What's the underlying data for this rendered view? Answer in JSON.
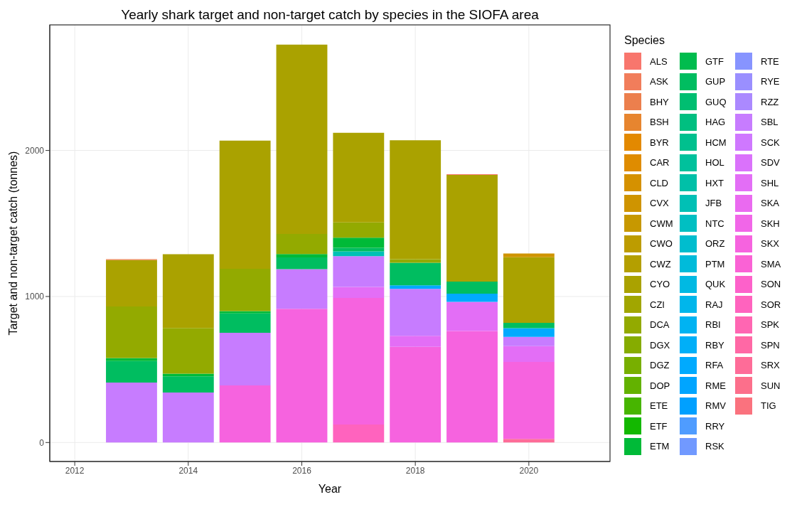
{
  "chart_data": {
    "type": "bar",
    "title": "Yearly shark target and non-target catch by species in the SIOFA area",
    "xlabel": "Year",
    "ylabel": "Target and non-target catch (tonnes)",
    "legend_title": "Species",
    "legend": "right",
    "grid": true,
    "stacked": true,
    "x": [
      2013,
      2014,
      2015,
      2016,
      2017,
      2018,
      2019,
      2020
    ],
    "xlim": [
      2011.56,
      2021.43
    ],
    "xticks": [
      2012,
      2014,
      2016,
      2018,
      2020
    ],
    "ylim": [
      -130,
      2860
    ],
    "yticks": [
      0,
      1000,
      2000
    ],
    "series": [
      {
        "name": "TIG",
        "color": "#fa727e",
        "values": [
          null,
          null,
          null,
          null,
          null,
          null,
          null,
          null
        ]
      },
      {
        "name": "SUN",
        "color": "#fc6f8b",
        "values": [
          null,
          null,
          null,
          null,
          null,
          null,
          null,
          null
        ]
      },
      {
        "name": "SRX",
        "color": "#fe6c98",
        "values": [
          null,
          null,
          null,
          null,
          null,
          null,
          null,
          25
        ]
      },
      {
        "name": "SPN",
        "color": "#ff68a5",
        "values": [
          null,
          null,
          null,
          null,
          null,
          null,
          null,
          null
        ]
      },
      {
        "name": "SPK",
        "color": "#ff66b2",
        "values": [
          null,
          null,
          null,
          null,
          null,
          null,
          null,
          null
        ]
      },
      {
        "name": "SOR",
        "color": "#ff63be",
        "values": [
          null,
          null,
          null,
          null,
          123,
          null,
          null,
          null
        ]
      },
      {
        "name": "SON",
        "color": "#fd61ca",
        "values": [
          null,
          null,
          null,
          null,
          null,
          null,
          null,
          null
        ]
      },
      {
        "name": "SMA",
        "color": "#fa62d5",
        "values": [
          null,
          null,
          null,
          null,
          null,
          null,
          null,
          null
        ]
      },
      {
        "name": "SKX",
        "color": "#f663df",
        "values": [
          null,
          null,
          391,
          916,
          867,
          655,
          764,
          527
        ]
      },
      {
        "name": "SKH",
        "color": "#f166e8",
        "values": [
          null,
          null,
          null,
          null,
          null,
          null,
          null,
          null
        ]
      },
      {
        "name": "SKA",
        "color": "#ea6af0",
        "values": [
          null,
          null,
          null,
          null,
          null,
          null,
          null,
          null
        ]
      },
      {
        "name": "SHL",
        "color": "#e36ef6",
        "values": [
          null,
          null,
          null,
          null,
          76,
          76,
          199,
          108
        ]
      },
      {
        "name": "SDV",
        "color": "#da72fb",
        "values": [
          null,
          null,
          null,
          null,
          null,
          null,
          null,
          null
        ]
      },
      {
        "name": "SCK",
        "color": "#cf78ff",
        "values": [
          null,
          null,
          null,
          null,
          null,
          null,
          null,
          null
        ]
      },
      {
        "name": "SBL",
        "color": "#c77cff",
        "values": [
          410,
          342,
          361,
          271,
          210,
          321,
          null,
          64
        ]
      },
      {
        "name": "RZZ",
        "color": "#ab89ff",
        "values": [
          null,
          null,
          null,
          null,
          null,
          null,
          null,
          null
        ]
      },
      {
        "name": "RYE",
        "color": "#9a8fff",
        "values": [
          null,
          null,
          null,
          null,
          null,
          null,
          null,
          null
        ]
      },
      {
        "name": "RTE",
        "color": "#8794ff",
        "values": [
          null,
          null,
          null,
          null,
          null,
          null,
          null,
          null
        ]
      },
      {
        "name": "RSK",
        "color": "#7199ff",
        "values": [
          null,
          null,
          null,
          null,
          null,
          null,
          null,
          null
        ]
      },
      {
        "name": "RRY",
        "color": "#4f9cff",
        "values": [
          null,
          null,
          null,
          null,
          null,
          null,
          null,
          null
        ]
      },
      {
        "name": "RMV",
        "color": "#00a0ff",
        "values": [
          null,
          null,
          null,
          null,
          null,
          null,
          null,
          null
        ]
      },
      {
        "name": "RME",
        "color": "#00a5ff",
        "values": [
          null,
          null,
          null,
          null,
          null,
          null,
          null,
          null
        ]
      },
      {
        "name": "RFA",
        "color": "#00aafe",
        "values": [
          null,
          null,
          null,
          null,
          null,
          25,
          56,
          59
        ]
      },
      {
        "name": "RBY",
        "color": "#00aff8",
        "values": [
          null,
          null,
          null,
          null,
          null,
          null,
          null,
          null
        ]
      },
      {
        "name": "RBI",
        "color": "#00b3f2",
        "values": [
          null,
          null,
          null,
          null,
          null,
          null,
          null,
          null
        ]
      },
      {
        "name": "RAJ",
        "color": "#00b6eb",
        "values": [
          null,
          null,
          null,
          null,
          null,
          null,
          null,
          null
        ]
      },
      {
        "name": "QUK",
        "color": "#00b9e3",
        "values": [
          null,
          null,
          null,
          null,
          null,
          null,
          null,
          null
        ]
      },
      {
        "name": "PTM",
        "color": "#00bbda",
        "values": [
          null,
          null,
          null,
          null,
          null,
          null,
          null,
          null
        ]
      },
      {
        "name": "ORZ",
        "color": "#00bdce",
        "values": [
          null,
          null,
          null,
          null,
          null,
          null,
          null,
          null
        ]
      },
      {
        "name": "NTC",
        "color": "#00bfc2",
        "values": [
          null,
          null,
          null,
          null,
          null,
          null,
          null,
          null
        ]
      },
      {
        "name": "JFB",
        "color": "#00c0b5",
        "values": [
          null,
          null,
          null,
          null,
          33,
          null,
          null,
          null
        ]
      },
      {
        "name": "HXT",
        "color": "#00c0a8",
        "values": [
          null,
          null,
          null,
          null,
          null,
          null,
          null,
          null
        ]
      },
      {
        "name": "HOL",
        "color": "#00c19c",
        "values": [
          null,
          null,
          null,
          null,
          null,
          null,
          null,
          null
        ]
      },
      {
        "name": "HCM",
        "color": "#00c08e",
        "values": [
          null,
          null,
          null,
          null,
          null,
          null,
          null,
          null
        ]
      },
      {
        "name": "HAG",
        "color": "#00bf80",
        "values": [
          null,
          null,
          null,
          null,
          null,
          null,
          null,
          null
        ]
      },
      {
        "name": "GUQ",
        "color": "#00be71",
        "values": [
          null,
          null,
          null,
          null,
          null,
          null,
          null,
          null
        ]
      },
      {
        "name": "GUP",
        "color": "#00bd60",
        "values": [
          148,
          111,
          132,
          80,
          24,
          154,
          83,
          37
        ]
      },
      {
        "name": "GTF",
        "color": "#00bc4e",
        "values": [
          null,
          null,
          null,
          null,
          null,
          null,
          null,
          null
        ]
      },
      {
        "name": "ETM",
        "color": "#00ba38",
        "values": [
          21,
          18,
          16,
          24,
          70,
          null,
          null,
          null
        ]
      },
      {
        "name": "ETF",
        "color": "#13b800",
        "values": [
          null,
          null,
          null,
          null,
          null,
          null,
          null,
          null
        ]
      },
      {
        "name": "ETE",
        "color": "#47b500",
        "values": [
          null,
          null,
          null,
          null,
          null,
          null,
          null,
          null
        ]
      },
      {
        "name": "DOP",
        "color": "#63b200",
        "values": [
          null,
          null,
          null,
          null,
          null,
          null,
          null,
          null
        ]
      },
      {
        "name": "DGZ",
        "color": "#78af00",
        "values": [
          null,
          null,
          null,
          null,
          null,
          null,
          null,
          null
        ]
      },
      {
        "name": "DGX",
        "color": "#86ac00",
        "values": [
          null,
          null,
          null,
          null,
          null,
          null,
          null,
          null
        ]
      },
      {
        "name": "DCA",
        "color": "#93aa00",
        "values": [
          353,
          313,
          290,
          137,
          105,
          24,
          null,
          null
        ]
      },
      {
        "name": "CZI",
        "color": "#a1a600",
        "values": [
          null,
          null,
          null,
          null,
          null,
          null,
          null,
          null
        ]
      },
      {
        "name": "CYO",
        "color": "#aaa200",
        "values": [
          317,
          506,
          877,
          1297,
          613,
          815,
          730,
          449
        ]
      },
      {
        "name": "CWZ",
        "color": "#b49f00",
        "values": [
          null,
          null,
          null,
          null,
          null,
          null,
          null,
          null
        ]
      },
      {
        "name": "CWO",
        "color": "#bd9c00",
        "values": [
          null,
          null,
          null,
          null,
          null,
          null,
          null,
          null
        ]
      },
      {
        "name": "CWM",
        "color": "#c79800",
        "values": [
          null,
          null,
          null,
          null,
          null,
          null,
          null,
          null
        ]
      },
      {
        "name": "CVX",
        "color": "#cf9400",
        "values": [
          null,
          null,
          null,
          null,
          null,
          null,
          null,
          25
        ]
      },
      {
        "name": "CLD",
        "color": "#d59100",
        "values": [
          null,
          null,
          null,
          null,
          null,
          null,
          null,
          null
        ]
      },
      {
        "name": "CAR",
        "color": "#df8c00",
        "values": [
          null,
          null,
          null,
          null,
          null,
          null,
          null,
          null
        ]
      },
      {
        "name": "BYR",
        "color": "#e38900",
        "values": [
          null,
          null,
          null,
          null,
          null,
          null,
          null,
          null
        ]
      },
      {
        "name": "BSH",
        "color": "#e7852f",
        "values": [
          null,
          null,
          null,
          null,
          null,
          null,
          null,
          null
        ]
      },
      {
        "name": "BHY",
        "color": "#ec7f4d",
        "values": [
          6,
          null,
          null,
          null,
          null,
          null,
          null,
          null
        ]
      },
      {
        "name": "ASK",
        "color": "#f17d5b",
        "values": [
          null,
          null,
          null,
          null,
          null,
          null,
          null,
          null
        ]
      },
      {
        "name": "ALS",
        "color": "#f8766d",
        "values": [
          null,
          null,
          null,
          null,
          null,
          null,
          5,
          null
        ]
      }
    ]
  }
}
